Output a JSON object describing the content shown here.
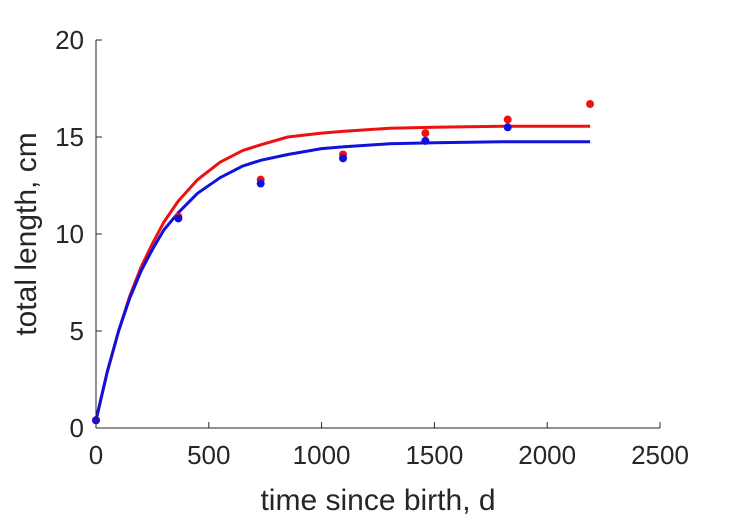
{
  "chart_data": {
    "type": "line",
    "title": "",
    "xlabel": "time since birth, d",
    "ylabel": "total length, cm",
    "xlim": [
      0,
      2500
    ],
    "ylim": [
      0,
      20
    ],
    "xticks": [
      0,
      500,
      1000,
      1500,
      2000,
      2500
    ],
    "xtick_labels": [
      "0",
      "500",
      "1000",
      "1500",
      "2000",
      "2500"
    ],
    "yticks": [
      0,
      5,
      10,
      15,
      20
    ],
    "ytick_labels": [
      "0",
      "5",
      "10",
      "15",
      "20"
    ],
    "grid": false,
    "colors": {
      "red": "#ee1111",
      "blue": "#1111dd"
    },
    "series": [
      {
        "color": "#ee1111",
        "points": [
          [
            0,
            0.4
          ],
          [
            365,
            10.9
          ],
          [
            730,
            12.8
          ],
          [
            1095,
            14.1
          ],
          [
            1460,
            15.2
          ],
          [
            1825,
            15.9
          ],
          [
            2190,
            16.7
          ]
        ],
        "curve": [
          [
            0,
            0.4
          ],
          [
            50,
            2.9
          ],
          [
            100,
            5.0
          ],
          [
            150,
            6.8
          ],
          [
            200,
            8.3
          ],
          [
            250,
            9.5
          ],
          [
            300,
            10.6
          ],
          [
            365,
            11.7
          ],
          [
            450,
            12.8
          ],
          [
            550,
            13.7
          ],
          [
            650,
            14.3
          ],
          [
            730,
            14.6
          ],
          [
            850,
            15.0
          ],
          [
            1000,
            15.2
          ],
          [
            1100,
            15.3
          ],
          [
            1300,
            15.45
          ],
          [
            1500,
            15.5
          ],
          [
            1800,
            15.55
          ],
          [
            2190,
            15.55
          ]
        ]
      },
      {
        "color": "#1111dd",
        "points": [
          [
            0,
            0.4
          ],
          [
            365,
            10.8
          ],
          [
            730,
            12.6
          ],
          [
            1095,
            13.9
          ],
          [
            1460,
            14.8
          ],
          [
            1825,
            15.5
          ]
        ],
        "curve": [
          [
            0,
            0.4
          ],
          [
            50,
            2.9
          ],
          [
            100,
            5.0
          ],
          [
            150,
            6.7
          ],
          [
            200,
            8.1
          ],
          [
            250,
            9.2
          ],
          [
            300,
            10.2
          ],
          [
            365,
            11.1
          ],
          [
            450,
            12.1
          ],
          [
            550,
            12.9
          ],
          [
            650,
            13.5
          ],
          [
            730,
            13.8
          ],
          [
            850,
            14.1
          ],
          [
            1000,
            14.4
          ],
          [
            1100,
            14.5
          ],
          [
            1300,
            14.65
          ],
          [
            1500,
            14.7
          ],
          [
            1800,
            14.75
          ],
          [
            2190,
            14.75
          ]
        ]
      }
    ]
  }
}
